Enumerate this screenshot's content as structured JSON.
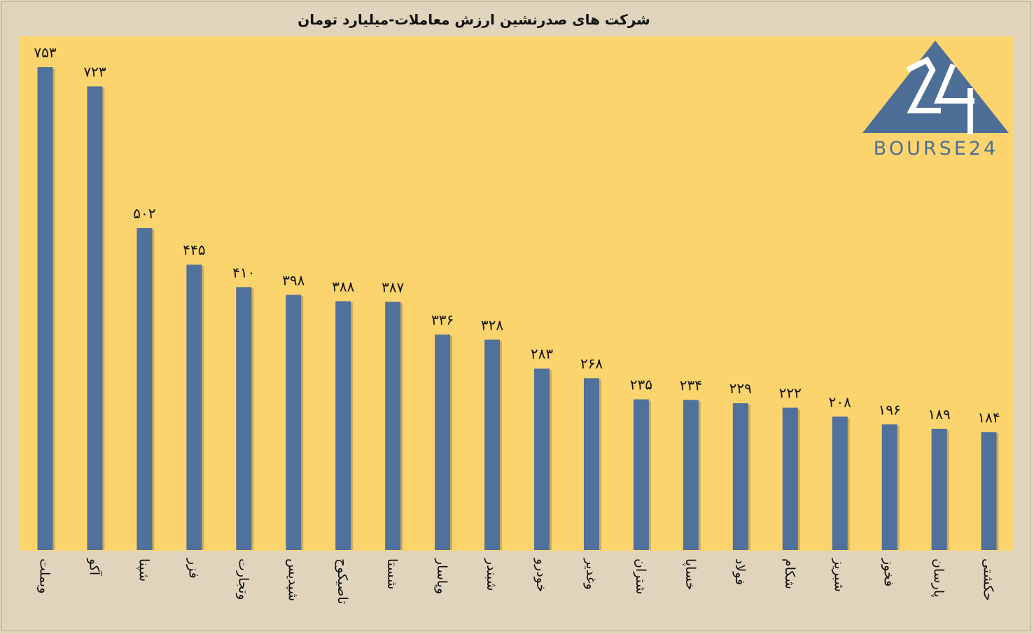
{
  "chart_data": {
    "type": "bar",
    "title": "شرکت های صدرنشین ارزش معاملات-میلیارد تومان",
    "categories": [
      "وبملت",
      "آکو",
      "شپنا",
      "فزر",
      "وتجارت",
      "شپدیس",
      "تاصیکوح",
      "شستا",
      "وپاسار",
      "شبندر",
      "خودرو",
      "وغدیر",
      "شتران",
      "خساپا",
      "فولاد",
      "شکام",
      "شبریز",
      "فخوز",
      "پارسان",
      "حکشتی"
    ],
    "values": [
      753,
      723,
      502,
      445,
      410,
      398,
      388,
      387,
      336,
      328,
      283,
      268,
      235,
      234,
      229,
      222,
      208,
      196,
      189,
      184
    ],
    "value_labels": [
      "۷۵۳",
      "۷۲۳",
      "۵۰۲",
      "۴۴۵",
      "۴۱۰",
      "۳۹۸",
      "۳۸۸",
      "۳۸۷",
      "۳۳۶",
      "۳۲۸",
      "۲۸۳",
      "۲۶۸",
      "۲۳۵",
      "۲۳۴",
      "۲۲۹",
      "۲۲۲",
      "۲۰۸",
      "۱۹۶",
      "۱۸۹",
      "۱۸۴"
    ],
    "ylim": [
      0,
      753
    ],
    "grid": false,
    "legend": "none"
  },
  "logo": {
    "numerals": "24",
    "wordmark": "BOURSE24"
  },
  "colors": {
    "bar": "#4f719b",
    "plot_bg": "#fcd46d",
    "page_bg": "#e0d5bc",
    "logo": "#4d6e96"
  }
}
